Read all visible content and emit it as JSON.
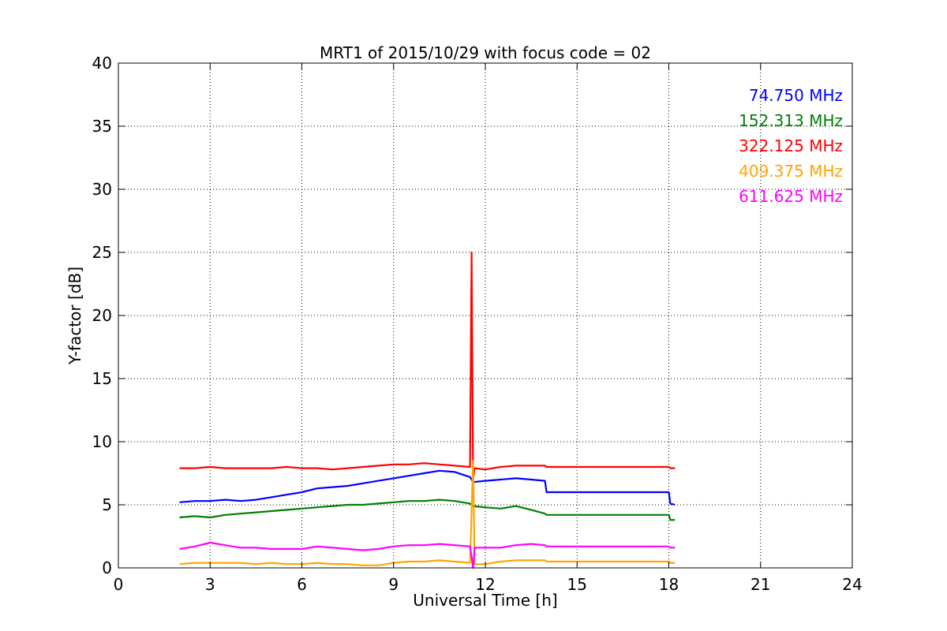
{
  "chart_data": {
    "type": "line",
    "title": "MRT1 of 2015/10/29 with focus code = 02",
    "xlabel": "Universal Time [h]",
    "ylabel": "Y-factor [dB]",
    "xlim": [
      0,
      24
    ],
    "ylim": [
      0,
      40
    ],
    "x_ticks": [
      "0",
      "3",
      "6",
      "9",
      "12",
      "15",
      "18",
      "21",
      "24"
    ],
    "y_ticks": [
      "0",
      "5",
      "10",
      "15",
      "20",
      "25",
      "30",
      "35",
      "40"
    ],
    "grid": true,
    "legend_placement": "top-right",
    "series": [
      {
        "name": "74.750 MHz",
        "color": "#0000ff",
        "x": [
          2.0,
          2.5,
          3.0,
          3.5,
          4.0,
          4.5,
          5.0,
          5.5,
          6.0,
          6.5,
          7.0,
          7.5,
          8.0,
          8.5,
          9.0,
          9.5,
          10.0,
          10.5,
          11.0,
          11.5,
          11.6,
          12.0,
          12.5,
          13.0,
          13.5,
          13.95,
          14.0,
          18.0,
          18.05,
          18.2
        ],
        "y": [
          5.2,
          5.3,
          5.3,
          5.4,
          5.3,
          5.4,
          5.6,
          5.8,
          6.0,
          6.3,
          6.4,
          6.5,
          6.7,
          6.9,
          7.1,
          7.3,
          7.5,
          7.7,
          7.6,
          7.2,
          6.8,
          6.9,
          7.0,
          7.1,
          7.0,
          6.9,
          6.0,
          6.0,
          5.1,
          5.0
        ]
      },
      {
        "name": "152.313 MHz",
        "color": "#008000",
        "x": [
          2.0,
          2.5,
          3.0,
          3.5,
          4.0,
          4.5,
          5.0,
          5.5,
          6.0,
          6.5,
          7.0,
          7.5,
          8.0,
          8.5,
          9.0,
          9.5,
          10.0,
          10.5,
          11.0,
          11.5,
          11.6,
          12.0,
          12.5,
          13.0,
          13.5,
          13.95,
          14.0,
          18.0,
          18.05,
          18.2
        ],
        "y": [
          4.0,
          4.1,
          4.0,
          4.2,
          4.3,
          4.4,
          4.5,
          4.6,
          4.7,
          4.8,
          4.9,
          5.0,
          5.0,
          5.1,
          5.2,
          5.3,
          5.3,
          5.4,
          5.3,
          5.1,
          4.9,
          4.8,
          4.7,
          4.9,
          4.6,
          4.3,
          4.2,
          4.2,
          3.8,
          3.8
        ]
      },
      {
        "name": "322.125 MHz",
        "color": "#ff0000",
        "x": [
          2.0,
          2.5,
          3.0,
          3.5,
          4.0,
          4.5,
          5.0,
          5.5,
          6.0,
          6.5,
          7.0,
          7.5,
          8.0,
          8.5,
          9.0,
          9.5,
          10.0,
          10.5,
          11.0,
          11.5,
          11.55,
          11.6,
          11.65,
          12.0,
          12.5,
          13.0,
          13.5,
          13.95,
          14.0,
          18.0,
          18.05,
          18.2
        ],
        "y": [
          7.9,
          7.9,
          8.0,
          7.9,
          7.9,
          7.9,
          7.9,
          8.0,
          7.9,
          7.9,
          7.8,
          7.9,
          8.0,
          8.1,
          8.2,
          8.2,
          8.3,
          8.2,
          8.1,
          8.0,
          25.0,
          7.0,
          7.9,
          7.8,
          8.0,
          8.1,
          8.1,
          8.1,
          8.0,
          8.0,
          7.9,
          7.9
        ]
      },
      {
        "name": "409.375 MHz",
        "color": "#ffa500",
        "x": [
          2.0,
          2.5,
          3.0,
          3.5,
          4.0,
          4.5,
          5.0,
          5.5,
          6.0,
          6.5,
          7.0,
          7.5,
          8.0,
          8.5,
          9.0,
          9.5,
          10.0,
          10.5,
          11.0,
          11.5,
          11.6,
          11.65,
          12.0,
          12.5,
          13.0,
          13.5,
          13.95,
          14.0,
          18.0,
          18.05,
          18.2
        ],
        "y": [
          0.3,
          0.4,
          0.4,
          0.4,
          0.4,
          0.3,
          0.4,
          0.3,
          0.3,
          0.4,
          0.3,
          0.3,
          0.2,
          0.2,
          0.4,
          0.5,
          0.5,
          0.6,
          0.5,
          0.4,
          8.5,
          0.3,
          0.3,
          0.5,
          0.6,
          0.6,
          0.6,
          0.5,
          0.5,
          0.4,
          0.4
        ]
      },
      {
        "name": "611.625 MHz",
        "color": "#ff00ff",
        "x": [
          2.0,
          2.5,
          3.0,
          3.5,
          4.0,
          4.5,
          5.0,
          5.5,
          6.0,
          6.5,
          7.0,
          7.5,
          8.0,
          8.5,
          9.0,
          9.5,
          10.0,
          10.5,
          11.0,
          11.5,
          11.6,
          11.65,
          12.0,
          12.5,
          13.0,
          13.5,
          13.95,
          14.0,
          18.0,
          18.05,
          18.2
        ],
        "y": [
          1.5,
          1.7,
          2.0,
          1.8,
          1.6,
          1.6,
          1.5,
          1.5,
          1.5,
          1.7,
          1.6,
          1.5,
          1.4,
          1.5,
          1.7,
          1.8,
          1.8,
          1.9,
          1.8,
          1.7,
          0.0,
          1.6,
          1.6,
          1.6,
          1.8,
          1.9,
          1.8,
          1.7,
          1.7,
          1.6,
          1.6
        ]
      }
    ]
  }
}
